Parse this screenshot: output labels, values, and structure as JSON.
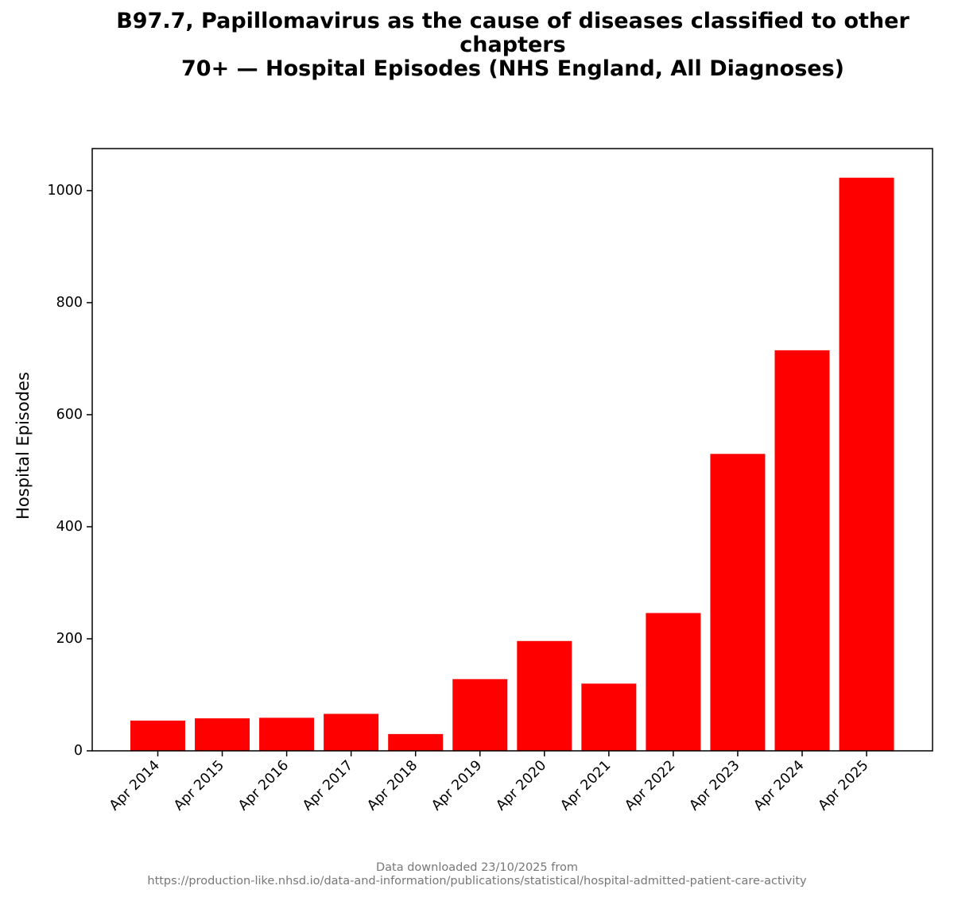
{
  "title_lines": [
    "B97.7, Papillomavirus as the cause of diseases classified to other",
    "chapters",
    "70+ — Hospital Episodes (NHS England, All Diagnoses)"
  ],
  "footer_lines": [
    "Data downloaded 23/10/2025 from",
    "https://production-like.nhsd.io/data-and-information/publications/statistical/hospital-admitted-patient-care-activity"
  ],
  "chart_data": {
    "type": "bar",
    "title": "B97.7, Papillomavirus as the cause of diseases classified to other chapters 70+ — Hospital Episodes (NHS England, All Diagnoses)",
    "xlabel": "",
    "ylabel": "Hospital Episodes",
    "categories": [
      "Apr 2014",
      "Apr 2015",
      "Apr 2016",
      "Apr 2017",
      "Apr 2018",
      "Apr 2019",
      "Apr 2020",
      "Apr 2021",
      "Apr 2022",
      "Apr 2023",
      "Apr 2024",
      "Apr 2025"
    ],
    "values": [
      54,
      58,
      59,
      66,
      30,
      128,
      196,
      120,
      246,
      530,
      715,
      1023
    ],
    "ylim": [
      0,
      1075
    ],
    "yticks": [
      0,
      200,
      400,
      600,
      800,
      1000
    ],
    "bar_color": "#ff0000",
    "grid": false,
    "legend": "none"
  }
}
